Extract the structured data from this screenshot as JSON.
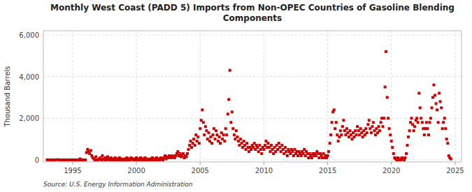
{
  "chart_data": {
    "type": "scatter",
    "title": "Monthly West Coast (PADD 5) Imports from Non-OPEC Countries of Gasoline Blending\nComponents",
    "ylabel": "Thousand Barrels",
    "source": "Source: U.S. Energy Information Administration",
    "color": "#CC0000",
    "marker": "square",
    "grid": true,
    "xlim": [
      1992.7,
      2025.5
    ],
    "ylim": [
      -100,
      6200
    ],
    "xticks": [
      1995,
      2000,
      2005,
      2010,
      2015,
      2020,
      2025
    ],
    "yticks": [
      0,
      {
        "value": 2000,
        "label": "2,000"
      },
      {
        "value": 4000,
        "label": "4,000"
      },
      {
        "value": 6000,
        "label": "6,000"
      }
    ],
    "x": [
      1993.0,
      1993.2,
      1993.4,
      1993.6,
      1993.8,
      1994.0,
      1994.2,
      1994.4,
      1994.6,
      1994.8,
      1995.0,
      1995.08,
      1995.17,
      1995.25,
      1995.33,
      1995.42,
      1995.5,
      1995.58,
      1995.67,
      1995.75,
      1995.83,
      1995.92,
      1996.0,
      1996.08,
      1996.17,
      1996.25,
      1996.33,
      1996.42,
      1996.5,
      1996.58,
      1996.67,
      1996.75,
      1996.83,
      1996.92,
      1997.0,
      1997.08,
      1997.17,
      1997.25,
      1997.33,
      1997.42,
      1997.5,
      1997.58,
      1997.67,
      1997.75,
      1997.83,
      1997.92,
      1998.0,
      1998.08,
      1998.17,
      1998.25,
      1998.33,
      1998.42,
      1998.5,
      1998.58,
      1998.67,
      1998.75,
      1998.83,
      1998.92,
      1999.0,
      1999.08,
      1999.17,
      1999.25,
      1999.33,
      1999.42,
      1999.5,
      1999.58,
      1999.67,
      1999.75,
      1999.83,
      1999.92,
      2000.0,
      2000.08,
      2000.17,
      2000.25,
      2000.33,
      2000.42,
      2000.5,
      2000.58,
      2000.67,
      2000.75,
      2000.83,
      2000.92,
      2001.0,
      2001.08,
      2001.17,
      2001.25,
      2001.33,
      2001.42,
      2001.5,
      2001.58,
      2001.67,
      2001.75,
      2001.83,
      2001.92,
      2002.0,
      2002.08,
      2002.17,
      2002.25,
      2002.33,
      2002.42,
      2002.5,
      2002.58,
      2002.67,
      2002.75,
      2002.83,
      2002.92,
      2003.0,
      2003.08,
      2003.17,
      2003.25,
      2003.33,
      2003.42,
      2003.5,
      2003.58,
      2003.67,
      2003.75,
      2003.83,
      2003.92,
      2004.0,
      2004.08,
      2004.17,
      2004.25,
      2004.33,
      2004.42,
      2004.5,
      2004.58,
      2004.67,
      2004.75,
      2004.83,
      2004.92,
      2005.0,
      2005.08,
      2005.17,
      2005.25,
      2005.33,
      2005.42,
      2005.5,
      2005.58,
      2005.67,
      2005.75,
      2005.83,
      2005.92,
      2006.0,
      2006.08,
      2006.17,
      2006.25,
      2006.33,
      2006.42,
      2006.5,
      2006.58,
      2006.67,
      2006.75,
      2006.83,
      2006.92,
      2007.0,
      2007.08,
      2007.17,
      2007.25,
      2007.33,
      2007.42,
      2007.5,
      2007.58,
      2007.67,
      2007.75,
      2007.83,
      2007.92,
      2008.0,
      2008.08,
      2008.17,
      2008.25,
      2008.33,
      2008.42,
      2008.5,
      2008.58,
      2008.67,
      2008.75,
      2008.83,
      2008.92,
      2009.0,
      2009.08,
      2009.17,
      2009.25,
      2009.33,
      2009.42,
      2009.5,
      2009.58,
      2009.67,
      2009.75,
      2009.83,
      2009.92,
      2010.0,
      2010.08,
      2010.17,
      2010.25,
      2010.33,
      2010.42,
      2010.5,
      2010.58,
      2010.67,
      2010.75,
      2010.83,
      2010.92,
      2011.0,
      2011.08,
      2011.17,
      2011.25,
      2011.33,
      2011.42,
      2011.5,
      2011.58,
      2011.67,
      2011.75,
      2011.83,
      2011.92,
      2012.0,
      2012.08,
      2012.17,
      2012.25,
      2012.33,
      2012.42,
      2012.5,
      2012.58,
      2012.67,
      2012.75,
      2012.83,
      2012.92,
      2013.0,
      2013.08,
      2013.17,
      2013.25,
      2013.33,
      2013.42,
      2013.5,
      2013.58,
      2013.67,
      2013.75,
      2013.83,
      2013.92,
      2014.0,
      2014.08,
      2014.17,
      2014.25,
      2014.33,
      2014.42,
      2014.5,
      2014.58,
      2014.67,
      2014.75,
      2014.83,
      2014.92,
      2015.0,
      2015.08,
      2015.17,
      2015.25,
      2015.33,
      2015.42,
      2015.5,
      2015.58,
      2015.67,
      2015.75,
      2015.83,
      2015.92,
      2016.0,
      2016.08,
      2016.17,
      2016.25,
      2016.33,
      2016.42,
      2016.5,
      2016.58,
      2016.67,
      2016.75,
      2016.83,
      2016.92,
      2017.0,
      2017.08,
      2017.17,
      2017.25,
      2017.33,
      2017.42,
      2017.5,
      2017.58,
      2017.67,
      2017.75,
      2017.83,
      2017.92,
      2018.0,
      2018.08,
      2018.17,
      2018.25,
      2018.33,
      2018.42,
      2018.5,
      2018.58,
      2018.67,
      2018.75,
      2018.83,
      2018.92,
      2019.0,
      2019.08,
      2019.17,
      2019.25,
      2019.33,
      2019.42,
      2019.5,
      2019.58,
      2019.67,
      2019.75,
      2019.83,
      2019.92,
      2020.0,
      2020.08,
      2020.17,
      2020.25,
      2020.33,
      2020.42,
      2020.5,
      2020.58,
      2020.67,
      2020.75,
      2020.83,
      2020.92,
      2021.0,
      2021.08,
      2021.17,
      2021.25,
      2021.33,
      2021.42,
      2021.5,
      2021.58,
      2021.67,
      2021.75,
      2021.83,
      2021.92,
      2022.0,
      2022.08,
      2022.17,
      2022.25,
      2022.33,
      2022.42,
      2022.5,
      2022.58,
      2022.67,
      2022.75,
      2022.83,
      2022.92,
      2023.0,
      2023.08,
      2023.17,
      2023.25,
      2023.33,
      2023.42,
      2023.5,
      2023.58,
      2023.67,
      2023.75,
      2023.83,
      2023.92,
      2024.0,
      2024.08,
      2024.17,
      2024.25,
      2024.33,
      2024.42,
      2024.5,
      2024.58,
      2024.67
    ],
    "values": [
      5,
      0,
      0,
      0,
      10,
      0,
      0,
      0,
      0,
      0,
      0,
      0,
      0,
      0,
      0,
      0,
      0,
      50,
      0,
      0,
      0,
      0,
      0,
      350,
      500,
      400,
      300,
      450,
      200,
      100,
      50,
      0,
      150,
      0,
      0,
      50,
      100,
      0,
      200,
      50,
      0,
      100,
      0,
      150,
      50,
      0,
      100,
      0,
      50,
      0,
      100,
      0,
      50,
      0,
      100,
      0,
      50,
      0,
      0,
      50,
      0,
      100,
      0,
      50,
      0,
      100,
      50,
      0,
      50,
      0,
      100,
      0,
      50,
      0,
      100,
      0,
      50,
      0,
      100,
      0,
      50,
      0,
      0,
      50,
      0,
      100,
      0,
      50,
      0,
      100,
      0,
      50,
      0,
      100,
      50,
      0,
      100,
      200,
      50,
      150,
      100,
      200,
      150,
      100,
      200,
      150,
      100,
      200,
      300,
      400,
      200,
      300,
      150,
      200,
      300,
      100,
      200,
      150,
      300,
      500,
      700,
      900,
      600,
      800,
      1000,
      700,
      1200,
      900,
      1100,
      800,
      1500,
      1900,
      2400,
      1800,
      1200,
      1600,
      1400,
      1000,
      1300,
      900,
      1100,
      800,
      1200,
      1500,
      1000,
      1400,
      1200,
      900,
      1100,
      800,
      1300,
      1000,
      1200,
      900,
      1500,
      1200,
      2200,
      2900,
      4300,
      1800,
      2300,
      1500,
      1200,
      1000,
      1400,
      1100,
      900,
      700,
      1000,
      800,
      600,
      900,
      700,
      500,
      800,
      600,
      400,
      600,
      500,
      700,
      600,
      800,
      500,
      700,
      600,
      400,
      700,
      500,
      300,
      600,
      500,
      700,
      900,
      600,
      800,
      600,
      400,
      700,
      500,
      300,
      600,
      400,
      700,
      500,
      800,
      600,
      400,
      700,
      500,
      300,
      600,
      400,
      200,
      500,
      400,
      300,
      500,
      400,
      200,
      500,
      300,
      400,
      200,
      400,
      300,
      200,
      400,
      300,
      500,
      200,
      400,
      300,
      100,
      300,
      200,
      100,
      300,
      200,
      300,
      200,
      400,
      300,
      100,
      300,
      200,
      100,
      300,
      100,
      200,
      100,
      200,
      400,
      800,
      1200,
      1800,
      2300,
      2400,
      1500,
      1800,
      1200,
      900,
      1100,
      1400,
      1200,
      1600,
      1900,
      1400,
      1200,
      1500,
      1300,
      1100,
      1400,
      1200,
      1000,
      1300,
      1100,
      1400,
      1200,
      1600,
      1400,
      1200,
      1500,
      1300,
      1100,
      1400,
      1200,
      1500,
      1300,
      1700,
      1900,
      1500,
      1300,
      1600,
      1800,
      1400,
      1200,
      1500,
      1300,
      1600,
      1400,
      1800,
      2000,
      1600,
      2000,
      3500,
      5200,
      3000,
      2000,
      1500,
      1200,
      900,
      600,
      300,
      100,
      50,
      0,
      100,
      0,
      50,
      0,
      100,
      50,
      0,
      100,
      300,
      700,
      1100,
      1400,
      1800,
      2000,
      1700,
      1400,
      1600,
      1900,
      2000,
      1800,
      3200,
      2500,
      2000,
      1800,
      1500,
      1200,
      1500,
      1800,
      1500,
      1200,
      1800,
      2000,
      2500,
      3000,
      3600,
      3100,
      2700,
      2400,
      1800,
      3200,
      2800,
      2500,
      1500,
      1800,
      2000,
      1500,
      1000,
      800,
      200,
      100,
      50
    ]
  }
}
